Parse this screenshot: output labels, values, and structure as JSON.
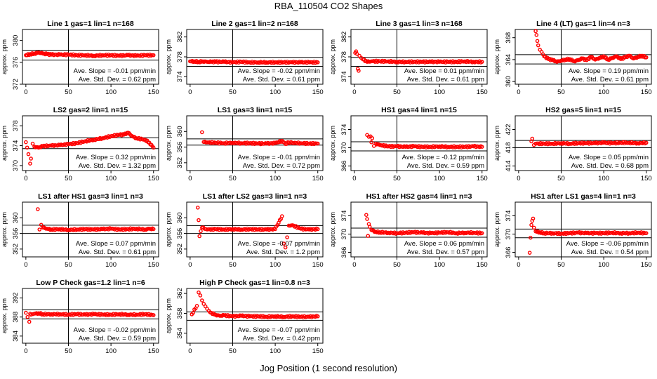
{
  "title": "RBA_110504  CO2 Shapes",
  "xlabel": "Jog Position (1 second resolution)",
  "slope_prefix": "Ave. Slope = ",
  "slope_unit": " ppm/min",
  "std_prefix": "Ave. Std. Dev. = ",
  "std_unit": " ppm",
  "chart_data": [
    {
      "type": "scatter",
      "title": "Line 1 gas=1 lin=1 n=168",
      "ylabel": "approx. ppm",
      "xlim": [
        -4,
        156
      ],
      "ylim": [
        372,
        382
      ],
      "xticks": [
        0,
        50,
        100,
        150
      ],
      "yticks": [
        372,
        376,
        380
      ],
      "hlines": [
        378.2,
        376.4
      ],
      "vline": 50,
      "slope": "-0.01",
      "std": "0.62",
      "x": [
        0,
        5,
        10,
        15,
        20,
        25,
        30,
        40,
        50,
        60,
        70,
        80,
        90,
        100,
        110,
        120,
        130,
        140,
        150
      ],
      "y": [
        377.3,
        377.5,
        377.6,
        377.8,
        377.6,
        377.5,
        377.4,
        377.4,
        377.4,
        377.3,
        377.3,
        377.2,
        377.3,
        377.3,
        377.2,
        377.3,
        377.2,
        377.3,
        377.3
      ]
    },
    {
      "type": "scatter",
      "title": "Line 2 gas=1 lin=2 n=168",
      "ylabel": "approx. ppm",
      "xlim": [
        -4,
        156
      ],
      "ylim": [
        372.5,
        383.5
      ],
      "xticks": [
        0,
        50,
        100,
        150
      ],
      "yticks": [
        374,
        378,
        382
      ],
      "hlines": [
        377.9,
        376.1
      ],
      "vline": 50,
      "slope": "-0.02",
      "std": "0.61",
      "x": [
        0,
        5,
        10,
        15,
        20,
        25,
        30,
        40,
        50,
        60,
        70,
        80,
        90,
        100,
        110,
        120,
        130,
        140,
        150
      ],
      "y": [
        377.1,
        377.1,
        377.0,
        377.1,
        377.0,
        377.0,
        377.0,
        377.0,
        376.9,
        377.0,
        376.9,
        376.9,
        376.9,
        376.9,
        376.9,
        376.9,
        376.9,
        376.9,
        376.9
      ]
    },
    {
      "type": "scatter",
      "title": "Line 3 gas=1 lin=3 n=168",
      "ylabel": "approx. ppm",
      "xlim": [
        -4,
        156
      ],
      "ylim": [
        372.5,
        383.5
      ],
      "xticks": [
        0,
        50,
        100,
        150
      ],
      "yticks": [
        374,
        378,
        382
      ],
      "hlines": [
        377.9,
        376.1
      ],
      "vline": 50,
      "slope": "0.01",
      "std": "0.61",
      "x": [
        1,
        2,
        3,
        4,
        5,
        6,
        8,
        10,
        15,
        20,
        30,
        40,
        50,
        60,
        70,
        80,
        90,
        100,
        110,
        120,
        130,
        140,
        150
      ],
      "y": [
        378.8,
        379.1,
        378.6,
        375.6,
        375.2,
        378.2,
        377.8,
        377.5,
        377.0,
        377.1,
        377.1,
        377.1,
        377.0,
        377.0,
        377.0,
        377.0,
        377.0,
        377.0,
        377.0,
        377.0,
        377.1,
        377.0,
        377.0
      ]
    },
    {
      "type": "scatter",
      "title": "Line 4 (LT) gas=1 lin=4 n=3",
      "ylabel": "approx. ppm",
      "xlim": [
        -4,
        156
      ],
      "ylim": [
        359.5,
        369.5
      ],
      "xticks": [
        0,
        50,
        100,
        150
      ],
      "yticks": [
        360,
        364,
        368
      ],
      "hlines": [
        364.9,
        363.2
      ],
      "vline": 50,
      "slope": "0.19",
      "std": "0.61",
      "x": [
        20,
        21,
        22,
        23,
        25,
        27,
        30,
        35,
        40,
        45,
        50,
        55,
        60,
        65,
        70,
        75,
        80,
        85,
        90,
        95,
        100,
        105,
        110,
        115,
        120,
        125,
        130,
        135,
        140,
        145,
        150
      ],
      "y": [
        369.2,
        368.5,
        367.4,
        366.6,
        365.8,
        365.4,
        364.6,
        364.1,
        363.9,
        363.6,
        363.8,
        364.0,
        364.1,
        363.7,
        363.9,
        364.2,
        363.9,
        364.5,
        364.0,
        364.3,
        364.6,
        364.0,
        364.3,
        364.6,
        364.1,
        364.4,
        364.7,
        364.2,
        364.5,
        364.7,
        364.4
      ]
    },
    {
      "type": "scatter",
      "title": "LS2 gas=2 lin=1 n=15",
      "ylabel": "approx. ppm",
      "xlim": [
        -4,
        156
      ],
      "ylim": [
        369,
        380
      ],
      "xticks": [
        0,
        50,
        100,
        150
      ],
      "yticks": [
        370,
        374,
        378
      ],
      "hlines": [
        375.6,
        373.4
      ],
      "vline": 50,
      "slope": "0.32",
      "std": "1.32",
      "x": [
        0,
        3,
        5,
        6,
        8,
        10,
        15,
        20,
        30,
        40,
        50,
        60,
        70,
        80,
        90,
        100,
        110,
        115,
        120,
        125,
        130,
        140,
        145,
        150
      ],
      "y": [
        374.7,
        372.3,
        370.4,
        371.4,
        374.4,
        373.8,
        373.6,
        373.9,
        374.0,
        374.1,
        374.3,
        374.5,
        374.9,
        375.2,
        375.5,
        375.9,
        376.2,
        376.2,
        376.6,
        375.9,
        375.5,
        375.2,
        374.6,
        373.6
      ]
    },
    {
      "type": "scatter",
      "title": "LS1 gas=3 lin=1 n=15",
      "ylabel": "approx. ppm",
      "xlim": [
        -4,
        156
      ],
      "ylim": [
        350,
        364
      ],
      "xticks": [
        0,
        50,
        100,
        150
      ],
      "yticks": [
        352,
        356,
        360
      ],
      "hlines": [
        358.1,
        356.5
      ],
      "vline": 50,
      "slope": "-0.01",
      "std": "0.72",
      "x": [
        14,
        16,
        20,
        30,
        40,
        50,
        60,
        70,
        80,
        90,
        100,
        108,
        112,
        116,
        120,
        130,
        140,
        150
      ],
      "y": [
        359.8,
        357.3,
        357.2,
        357.1,
        357.0,
        357.1,
        357.0,
        357.0,
        356.9,
        356.9,
        357.0,
        357.6,
        356.8,
        357.2,
        357.1,
        357.0,
        356.9,
        356.9
      ]
    },
    {
      "type": "scatter",
      "title": "HS1 gas=4 lin=1 n=15",
      "ylabel": "approx. ppm",
      "xlim": [
        -4,
        156
      ],
      "ylim": [
        365,
        377
      ],
      "xticks": [
        0,
        50,
        100,
        150
      ],
      "yticks": [
        366,
        370,
        374
      ],
      "hlines": [
        371.3,
        369.3
      ],
      "vline": 50,
      "slope": "-0.12",
      "std": "0.59",
      "x": [
        15,
        17,
        19,
        20,
        21,
        23,
        25,
        30,
        40,
        50,
        60,
        70,
        80,
        90,
        100,
        110,
        120,
        130,
        140,
        150
      ],
      "y": [
        372.8,
        372.4,
        372.5,
        371.2,
        372.1,
        370.4,
        370.9,
        370.6,
        370.3,
        370.3,
        370.2,
        370.3,
        370.2,
        370.2,
        370.3,
        370.2,
        370.2,
        370.2,
        370.3,
        370.2
      ]
    },
    {
      "type": "scatter",
      "title": "HS2 gas=5 lin=1 n=15",
      "ylabel": "approx. ppm",
      "xlim": [
        -4,
        156
      ],
      "ylim": [
        413,
        425
      ],
      "xticks": [
        0,
        50,
        100,
        150
      ],
      "yticks": [
        414,
        418,
        422
      ],
      "hlines": [
        419.6,
        418.0
      ],
      "vline": 50,
      "slope": "0.05",
      "std": "0.68",
      "x": [
        15,
        16,
        18,
        20,
        30,
        40,
        50,
        60,
        70,
        80,
        90,
        100,
        110,
        120,
        130,
        140,
        150
      ],
      "y": [
        419.4,
        420.0,
        418.6,
        418.9,
        418.9,
        418.9,
        419.0,
        418.9,
        419.0,
        419.0,
        419.0,
        419.1,
        419.0,
        419.1,
        419.1,
        419.0,
        419.1
      ]
    },
    {
      "type": "scatter",
      "title": "LS1 after HS1 gas=3 lin=1 n=3",
      "ylabel": "approx. ppm",
      "xlim": [
        -4,
        156
      ],
      "ylim": [
        350,
        364
      ],
      "xticks": [
        0,
        50,
        100,
        150
      ],
      "yticks": [
        352,
        356,
        360
      ],
      "hlines": [
        358.1,
        356.0
      ],
      "vline": 50,
      "slope": "0.07",
      "std": "0.61",
      "x": [
        14,
        16,
        18,
        20,
        25,
        30,
        40,
        50,
        60,
        70,
        80,
        90,
        100,
        110,
        120,
        130,
        140,
        145,
        150
      ],
      "y": [
        362.2,
        357.0,
        358.2,
        357.5,
        357.2,
        357.0,
        357.1,
        356.9,
        357.0,
        357.1,
        357.0,
        357.1,
        357.2,
        357.0,
        357.1,
        357.2,
        357.0,
        357.2,
        357.1
      ]
    },
    {
      "type": "scatter",
      "title": "LS1 after LS2 gas=3 lin=1 n=3",
      "ylabel": "approx. ppm",
      "xlim": [
        -4,
        156
      ],
      "ylim": [
        350,
        364
      ],
      "xticks": [
        0,
        50,
        100,
        150
      ],
      "yticks": [
        352,
        356,
        360
      ],
      "hlines": [
        358.0,
        356.0
      ],
      "vline": 50,
      "slope": "-0.07",
      "std": "1.2",
      "x": [
        9,
        10,
        11,
        14,
        20,
        30,
        40,
        50,
        60,
        70,
        80,
        90,
        100,
        108,
        110,
        112,
        114,
        116,
        120,
        130,
        140,
        150
      ],
      "y": [
        362.6,
        359.4,
        355.3,
        357.5,
        357.0,
        357.1,
        357.0,
        357.1,
        357.0,
        357.1,
        357.0,
        357.0,
        357.1,
        360.4,
        353.4,
        352.4,
        355.0,
        358.0,
        358.1,
        357.2,
        357.0,
        357.1
      ]
    },
    {
      "type": "scatter",
      "title": "HS1 after HS2 gas=4 lin=1 n=3",
      "ylabel": "approx. ppm",
      "xlim": [
        -4,
        156
      ],
      "ylim": [
        365,
        377
      ],
      "xticks": [
        0,
        50,
        100,
        150
      ],
      "yticks": [
        366,
        370,
        374
      ],
      "hlines": [
        371.3,
        369.3
      ],
      "vline": 50,
      "slope": "0.06",
      "std": "0.57",
      "x": [
        14,
        15,
        16,
        17,
        18,
        20,
        25,
        30,
        40,
        50,
        60,
        70,
        80,
        90,
        100,
        110,
        120,
        130,
        140,
        150
      ],
      "y": [
        374.2,
        373.3,
        369.6,
        372.2,
        371.6,
        370.9,
        370.5,
        370.4,
        370.3,
        370.2,
        370.3,
        370.4,
        370.3,
        370.2,
        370.3,
        370.4,
        370.2,
        370.3,
        370.3,
        370.2
      ]
    },
    {
      "type": "scatter",
      "title": "HS1 after LS1 gas=4 lin=1 n=3",
      "ylabel": "approx. ppm",
      "xlim": [
        -4,
        156
      ],
      "ylim": [
        365,
        377
      ],
      "xticks": [
        0,
        50,
        100,
        150
      ],
      "yticks": [
        366,
        370,
        374
      ],
      "hlines": [
        371.1,
        369.2
      ],
      "vline": 50,
      "slope": "-0.06",
      "std": "0.54",
      "x": [
        13,
        14,
        15,
        16,
        17,
        18,
        20,
        25,
        30,
        40,
        50,
        60,
        70,
        80,
        90,
        100,
        110,
        120,
        130,
        140,
        150
      ],
      "y": [
        365.9,
        369.2,
        372.0,
        372.9,
        373.4,
        371.4,
        370.6,
        370.4,
        370.2,
        370.2,
        370.1,
        370.2,
        370.3,
        370.2,
        370.2,
        370.2,
        370.3,
        370.2,
        370.2,
        370.3,
        370.2
      ]
    },
    {
      "type": "scatter",
      "title": "Low P Check gas=1.2 lin=1 n=6",
      "ylabel": "approx. ppm",
      "xlim": [
        -4,
        156
      ],
      "ylim": [
        382.5,
        394
      ],
      "xticks": [
        0,
        50,
        100,
        150
      ],
      "yticks": [
        384,
        388,
        392
      ],
      "hlines": [
        389.5,
        387.6
      ],
      "vline": 50,
      "slope": "-0.02",
      "std": "0.59",
      "x": [
        0,
        2,
        4,
        5,
        6,
        8,
        10,
        15,
        20,
        30,
        40,
        50,
        60,
        70,
        80,
        90,
        100,
        110,
        120,
        130,
        140,
        150
      ],
      "y": [
        388.9,
        388.0,
        387.0,
        388.7,
        388.5,
        388.6,
        388.7,
        388.8,
        388.6,
        388.6,
        388.6,
        388.5,
        388.6,
        388.5,
        388.6,
        388.5,
        388.5,
        388.6,
        388.5,
        388.5,
        388.6,
        388.4
      ]
    },
    {
      "type": "scatter",
      "title": "High P Check gas=1 lin=0.8 n=3",
      "ylabel": "approx. ppm",
      "xlim": [
        -4,
        156
      ],
      "ylim": [
        352,
        363
      ],
      "xticks": [
        0,
        50,
        100,
        150
      ],
      "yticks": [
        354,
        358,
        362
      ],
      "hlines": [
        358.3,
        356.6
      ],
      "vline": 50,
      "slope": "-0.07",
      "std": "0.42",
      "x": [
        2,
        8,
        10,
        12,
        14,
        16,
        18,
        20,
        22,
        25,
        30,
        35,
        40,
        50,
        60,
        70,
        80,
        90,
        100,
        110,
        120,
        130,
        140,
        150
      ],
      "y": [
        357.8,
        359.5,
        362.2,
        361.6,
        360.6,
        359.9,
        359.4,
        358.9,
        358.5,
        358.1,
        357.7,
        357.5,
        357.6,
        357.4,
        357.5,
        357.4,
        357.4,
        357.3,
        357.4,
        357.3,
        357.4,
        357.3,
        357.3,
        357.4
      ]
    }
  ]
}
